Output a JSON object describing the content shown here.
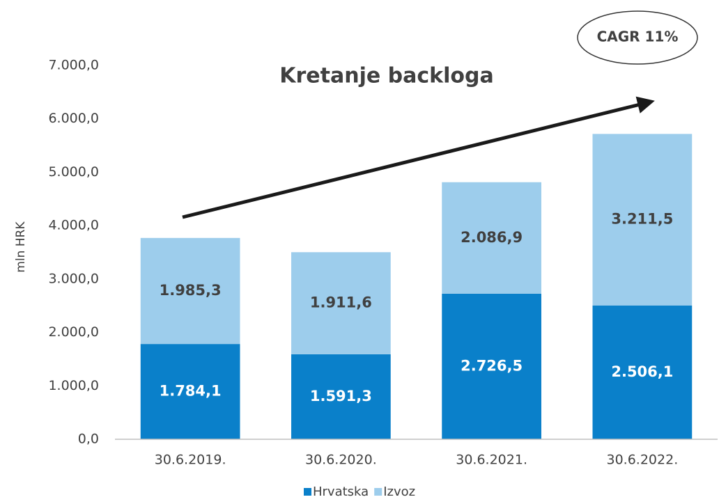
{
  "chart_data": {
    "type": "stacked_bar",
    "title": "Kretanje backloga",
    "y_label": "mln HRK",
    "annotation": "CAGR 11%",
    "categories": [
      "30.6.2019.",
      "30.6.2020.",
      "30.6.2021.",
      "30.6.2022."
    ],
    "series": [
      {
        "name": "Hrvatska",
        "color": "#0a80ca",
        "values": [
          1784.1,
          1591.3,
          2726.5,
          2506.1
        ],
        "value_labels": [
          "1.784,1",
          "1.591,3",
          "2.726,5",
          "2.506,1"
        ]
      },
      {
        "name": "Izvoz",
        "color": "#9dcdec",
        "values": [
          1985.3,
          1911.6,
          2086.9,
          3211.5
        ],
        "value_labels": [
          "1.985,3",
          "1.911,6",
          "2.086,9",
          "3.211,5"
        ]
      }
    ],
    "ylim": [
      0,
      7000
    ],
    "yticks": [
      {
        "value": 0,
        "label": "0,0"
      },
      {
        "value": 1000,
        "label": "1.000,0"
      },
      {
        "value": 2000,
        "label": "2.000,0"
      },
      {
        "value": 3000,
        "label": "3.000,0"
      },
      {
        "value": 4000,
        "label": "4.000,0"
      },
      {
        "value": 5000,
        "label": "5.000,0"
      },
      {
        "value": 6000,
        "label": "6.000,0"
      },
      {
        "value": 7000,
        "label": "7.000,0"
      }
    ],
    "legend": "bottom"
  }
}
